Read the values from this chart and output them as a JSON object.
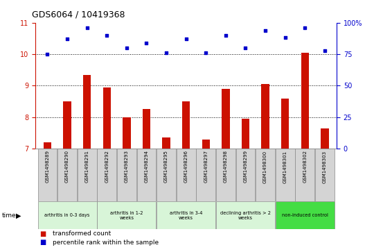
{
  "title": "GDS6064 / 10419368",
  "samples": [
    "GSM1498289",
    "GSM1498290",
    "GSM1498291",
    "GSM1498292",
    "GSM1498293",
    "GSM1498294",
    "GSM1498295",
    "GSM1498296",
    "GSM1498297",
    "GSM1498298",
    "GSM1498299",
    "GSM1498300",
    "GSM1498301",
    "GSM1498302",
    "GSM1498303"
  ],
  "red_values": [
    7.2,
    8.5,
    9.35,
    8.95,
    8.0,
    8.25,
    7.35,
    8.5,
    7.3,
    8.9,
    7.95,
    9.05,
    8.6,
    10.05,
    7.65
  ],
  "blue_values_pct": [
    75,
    87,
    96,
    90,
    80,
    84,
    76,
    87,
    76,
    90,
    80,
    94,
    88,
    96,
    78
  ],
  "ylim_left": [
    7,
    11
  ],
  "ylim_right": [
    0,
    100
  ],
  "yticks_left": [
    7,
    8,
    9,
    10,
    11
  ],
  "yticks_right": [
    0,
    25,
    50,
    75,
    100
  ],
  "ytick_labels_right": [
    "0",
    "25",
    "50",
    "75",
    "100%"
  ],
  "groups": [
    {
      "label": "arthritis in 0-3 days",
      "start": 0,
      "end": 3,
      "color": "#d8f5d8"
    },
    {
      "label": "arthritis in 1-2\nweeks",
      "start": 3,
      "end": 6,
      "color": "#d8f5d8"
    },
    {
      "label": "arthritis in 3-4\nweeks",
      "start": 6,
      "end": 9,
      "color": "#d8f5d8"
    },
    {
      "label": "declining arthritis > 2\nweeks",
      "start": 9,
      "end": 12,
      "color": "#d8f5d8"
    },
    {
      "label": "non-induced control",
      "start": 12,
      "end": 15,
      "color": "#44dd44"
    }
  ],
  "bar_color": "#cc1100",
  "dot_color": "#0000cc",
  "bar_width": 0.4
}
